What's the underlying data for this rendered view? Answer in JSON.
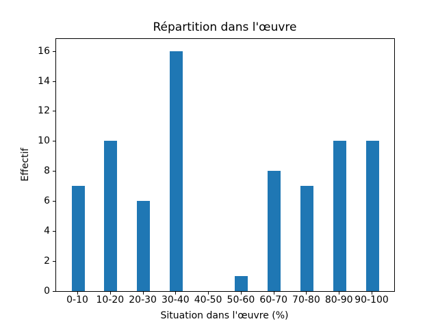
{
  "figure": {
    "background_color": "#ffffff",
    "spine_color": "#000000",
    "text_color": "#000000"
  },
  "chart_data": {
    "type": "bar",
    "title": "Répartition dans l'œuvre",
    "xlabel": "Situation dans l'œuvre (%)",
    "ylabel": "Effectif",
    "categories": [
      "0-10",
      "10-20",
      "20-30",
      "30-40",
      "40-50",
      "50-60",
      "60-70",
      "70-80",
      "80-90",
      "90-100"
    ],
    "values": [
      7,
      10,
      6,
      16,
      0,
      1,
      8,
      7,
      10,
      10
    ],
    "yticks": [
      0,
      2,
      4,
      6,
      8,
      10,
      12,
      14,
      16
    ],
    "ylim": [
      0,
      16.8
    ],
    "bar_color": "#1f77b4",
    "grid": false,
    "legend": null
  }
}
